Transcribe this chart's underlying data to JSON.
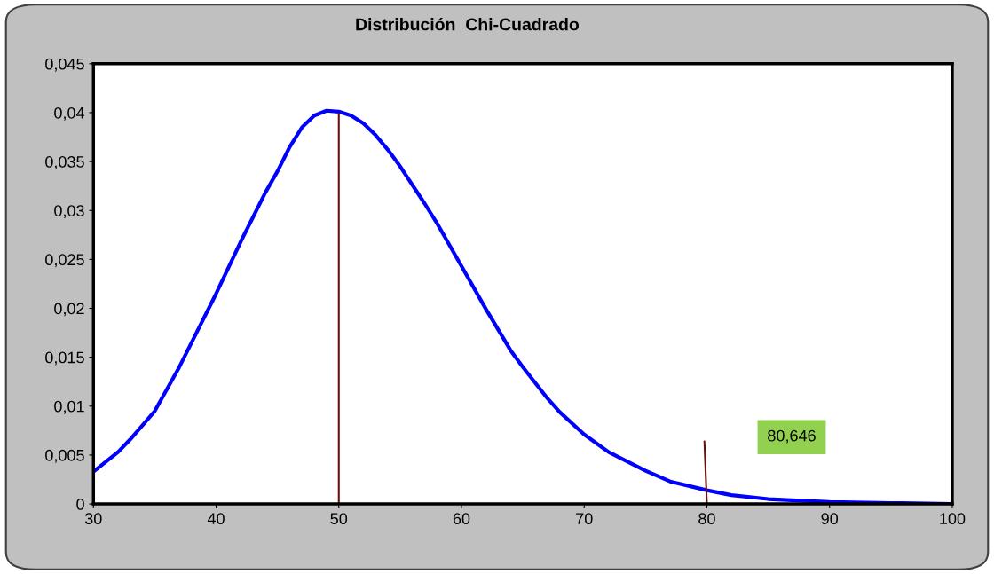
{
  "chart_data": {
    "type": "line",
    "title": "Distribución  Chi-Cuadrado",
    "series": [
      {
        "color": "#0000ff",
        "x": [
          30,
          32,
          33,
          35,
          37,
          38,
          40,
          42,
          43,
          44,
          45,
          46,
          47,
          48,
          49,
          50,
          51,
          52,
          53,
          54,
          55,
          57,
          58,
          59,
          60,
          62,
          64,
          65,
          67,
          68,
          70,
          72,
          75,
          77,
          80,
          82,
          85,
          90,
          95,
          100
        ],
        "values": [
          0.0033,
          0.0053,
          0.0066,
          0.0095,
          0.014,
          0.0165,
          0.0215,
          0.0268,
          0.0293,
          0.0318,
          0.034,
          0.0365,
          0.0385,
          0.0397,
          0.0402,
          0.0401,
          0.0397,
          0.0389,
          0.0377,
          0.0362,
          0.0345,
          0.0307,
          0.0287,
          0.0265,
          0.0243,
          0.0199,
          0.0157,
          0.014,
          0.0108,
          0.0094,
          0.0071,
          0.0053,
          0.0034,
          0.0023,
          0.0014,
          0.0009,
          0.0005,
          0.0002,
          0.0001,
          0
        ]
      },
      {
        "color": "#6b0f0f",
        "x": [
          50,
          50
        ],
        "values": [
          0,
          0.0399
        ]
      },
      {
        "color": "#6b0f0f",
        "x": [
          80,
          79.8
        ],
        "values": [
          0,
          0.0064
        ]
      }
    ],
    "annotations": [
      "80,646"
    ],
    "xlim": [
      30,
      100
    ],
    "xticks": [
      30,
      40,
      50,
      60,
      70,
      80,
      90,
      100
    ],
    "ylim": [
      0,
      0.045
    ],
    "yticks": [
      {
        "value": 0,
        "label": "0"
      },
      {
        "value": 0.005,
        "label": "0,005"
      },
      {
        "value": 0.01,
        "label": "0,01"
      },
      {
        "value": 0.015,
        "label": "0,015"
      },
      {
        "value": 0.02,
        "label": "0,02"
      },
      {
        "value": 0.025,
        "label": "0,025"
      },
      {
        "value": 0.03,
        "label": "0,03"
      },
      {
        "value": 0.035,
        "label": "0,035"
      },
      {
        "value": 0.04,
        "label": "0,04"
      },
      {
        "value": 0.045,
        "label": "0,045"
      }
    ],
    "grid": false,
    "legend": false
  }
}
